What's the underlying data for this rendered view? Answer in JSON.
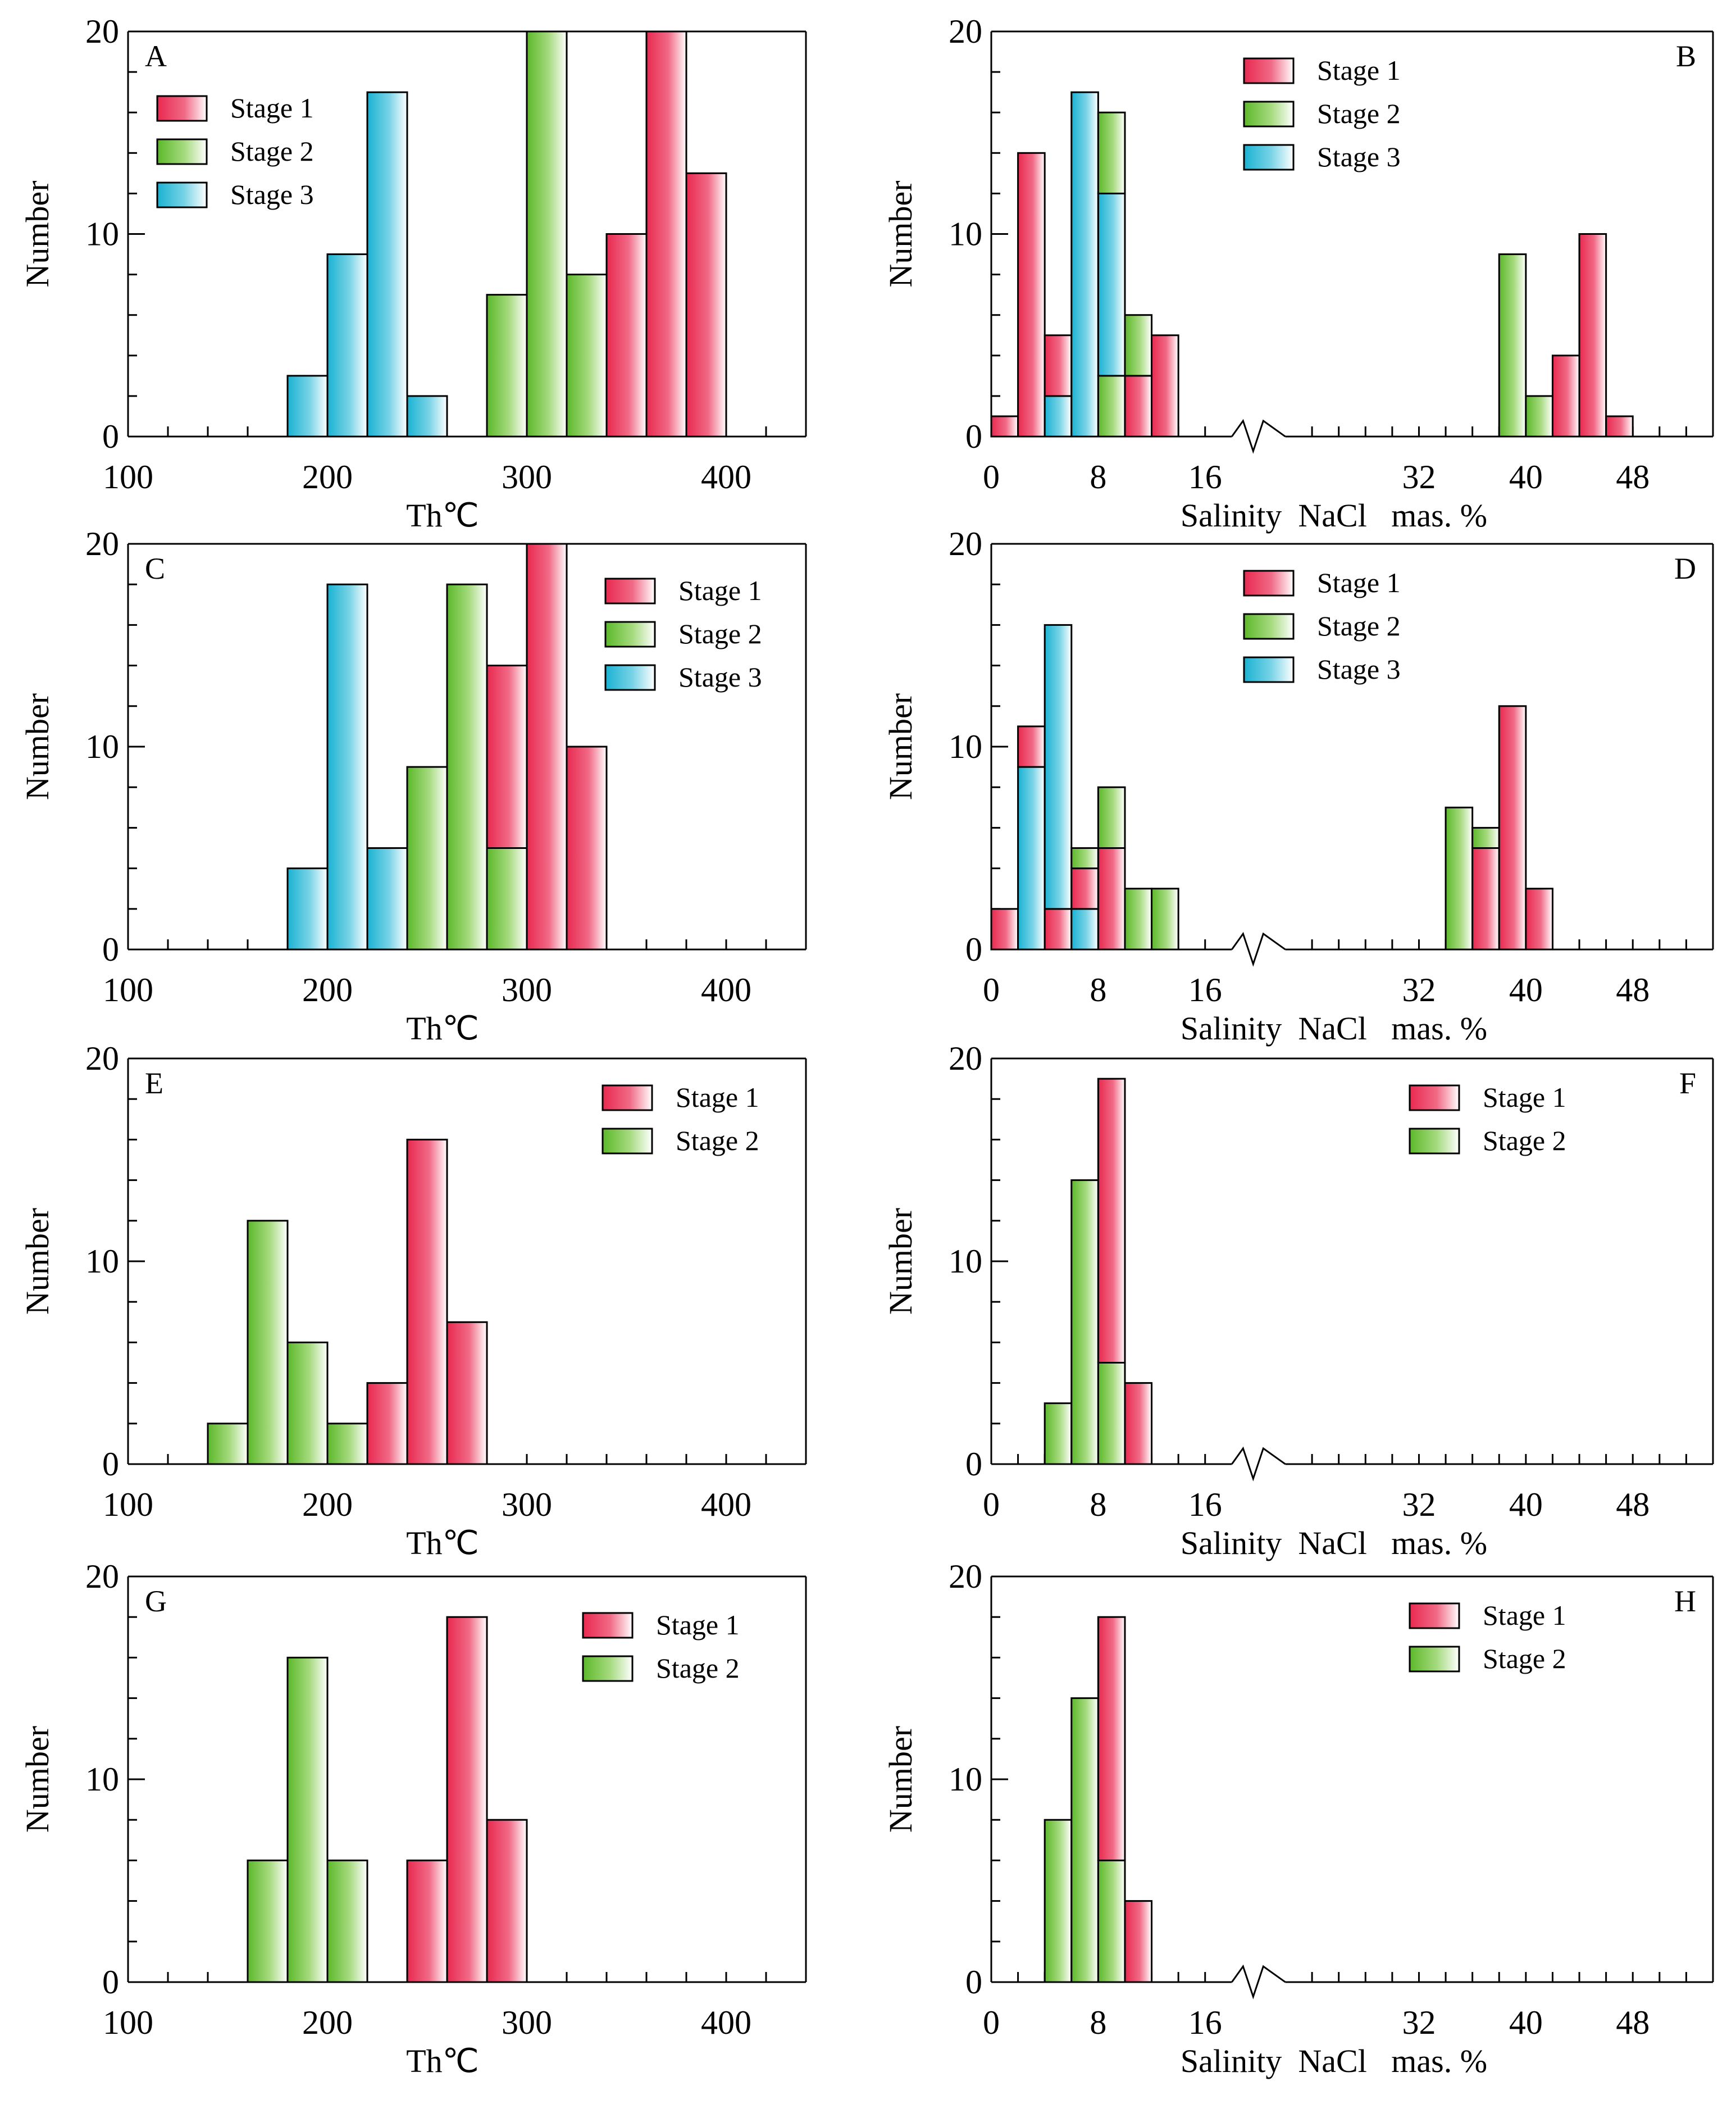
{
  "colors": {
    "stage1": "#ea2f5e",
    "stage2": "#69c232",
    "stage3": "#22b8d6",
    "axis": "#000000",
    "background": "#ffffff"
  },
  "chart_data": [
    {
      "id": "A",
      "letter": "A",
      "type": "bar",
      "kind": "th",
      "title": "",
      "xlabel": "Th℃",
      "ylabel": "Number",
      "xlim": [
        100,
        440
      ],
      "ylim": [
        0,
        20
      ],
      "bin_width": 20,
      "xticks": [
        "100",
        "200",
        "300",
        "400"
      ],
      "yticks": [
        "0",
        "10",
        "20"
      ],
      "legend": [
        "Stage 1",
        "Stage 2",
        "Stage 3"
      ],
      "legend_position": "top-left",
      "bars": [
        {
          "x": 180,
          "values": [
            {
              "stage": 3,
              "value": 3
            }
          ]
        },
        {
          "x": 200,
          "values": [
            {
              "stage": 3,
              "value": 9
            }
          ]
        },
        {
          "x": 220,
          "values": [
            {
              "stage": 3,
              "value": 17
            }
          ]
        },
        {
          "x": 240,
          "values": [
            {
              "stage": 3,
              "value": 2
            }
          ]
        },
        {
          "x": 280,
          "values": [
            {
              "stage": 2,
              "value": 7
            }
          ]
        },
        {
          "x": 300,
          "values": [
            {
              "stage": 2,
              "value": 20
            }
          ]
        },
        {
          "x": 320,
          "values": [
            {
              "stage": 2,
              "value": 8
            }
          ]
        },
        {
          "x": 340,
          "values": [
            {
              "stage": 1,
              "value": 10
            }
          ]
        },
        {
          "x": 360,
          "values": [
            {
              "stage": 1,
              "value": 20
            }
          ]
        },
        {
          "x": 380,
          "values": [
            {
              "stage": 1,
              "value": 13
            }
          ]
        }
      ]
    },
    {
      "id": "B",
      "letter": "B",
      "type": "bar",
      "kind": "sal",
      "title": "",
      "xlabel": "Salinity  NaCl   mas. %",
      "ylabel": "Number",
      "xlim": [
        0,
        54
      ],
      "ylim": [
        0,
        20
      ],
      "bin_width": 2,
      "axis_break": [
        18,
        22
      ],
      "xtick_positions": [
        0,
        8,
        16,
        32,
        40,
        48
      ],
      "xticks": [
        "0",
        "8",
        "16",
        "32",
        "40",
        "48"
      ],
      "yticks": [
        "0",
        "10",
        "20"
      ],
      "legend": [
        "Stage 1",
        "Stage 2",
        "Stage 3"
      ],
      "legend_position": "top-center",
      "bars": [
        {
          "x": 0,
          "values": [
            {
              "stage": 1,
              "value": 1
            }
          ]
        },
        {
          "x": 2,
          "values": [
            {
              "stage": 1,
              "value": 14
            }
          ]
        },
        {
          "x": 4,
          "values": [
            {
              "stage": 3,
              "value": 2
            },
            {
              "stage": 1,
              "value": 3
            }
          ]
        },
        {
          "x": 6,
          "values": [
            {
              "stage": 3,
              "value": 17
            }
          ]
        },
        {
          "x": 8,
          "values": [
            {
              "stage": 2,
              "value": 3
            },
            {
              "stage": 3,
              "value": 9
            },
            {
              "stage": 2,
              "value": 4
            }
          ]
        },
        {
          "x": 10,
          "values": [
            {
              "stage": 1,
              "value": 3
            },
            {
              "stage": 2,
              "value": 3
            }
          ]
        },
        {
          "x": 12,
          "values": [
            {
              "stage": 1,
              "value": 5
            }
          ]
        },
        {
          "x": 38,
          "values": [
            {
              "stage": 2,
              "value": 9
            }
          ]
        },
        {
          "x": 40,
          "values": [
            {
              "stage": 2,
              "value": 2
            }
          ]
        },
        {
          "x": 42,
          "values": [
            {
              "stage": 1,
              "value": 4
            }
          ]
        },
        {
          "x": 44,
          "values": [
            {
              "stage": 1,
              "value": 10
            }
          ]
        },
        {
          "x": 46,
          "values": [
            {
              "stage": 1,
              "value": 1
            }
          ]
        }
      ]
    },
    {
      "id": "C",
      "letter": "C",
      "type": "bar",
      "kind": "th",
      "title": "",
      "xlabel": "Th℃",
      "ylabel": "Number",
      "xlim": [
        100,
        440
      ],
      "ylim": [
        0,
        20
      ],
      "bin_width": 20,
      "xticks": [
        "100",
        "200",
        "300",
        "400"
      ],
      "yticks": [
        "0",
        "10",
        "20"
      ],
      "legend": [
        "Stage 1",
        "Stage 2",
        "Stage 3"
      ],
      "legend_position": "top-right",
      "bars": [
        {
          "x": 180,
          "values": [
            {
              "stage": 3,
              "value": 4
            }
          ]
        },
        {
          "x": 200,
          "values": [
            {
              "stage": 3,
              "value": 18
            }
          ]
        },
        {
          "x": 220,
          "values": [
            {
              "stage": 3,
              "value": 5
            }
          ]
        },
        {
          "x": 240,
          "values": [
            {
              "stage": 2,
              "value": 9
            }
          ]
        },
        {
          "x": 260,
          "values": [
            {
              "stage": 2,
              "value": 18
            }
          ]
        },
        {
          "x": 280,
          "values": [
            {
              "stage": 2,
              "value": 5
            },
            {
              "stage": 1,
              "value": 9
            }
          ]
        },
        {
          "x": 300,
          "values": [
            {
              "stage": 1,
              "value": 20
            }
          ]
        },
        {
          "x": 320,
          "values": [
            {
              "stage": 1,
              "value": 10
            }
          ]
        }
      ]
    },
    {
      "id": "D",
      "letter": "D",
      "type": "bar",
      "kind": "sal",
      "title": "",
      "xlabel": "Salinity  NaCl   mas. %",
      "ylabel": "Number",
      "xlim": [
        0,
        54
      ],
      "ylim": [
        0,
        20
      ],
      "bin_width": 2,
      "axis_break": [
        18,
        22
      ],
      "xtick_positions": [
        0,
        8,
        16,
        32,
        40,
        48
      ],
      "xticks": [
        "0",
        "8",
        "16",
        "32",
        "40",
        "48"
      ],
      "yticks": [
        "0",
        "10",
        "20"
      ],
      "legend": [
        "Stage 1",
        "Stage 2",
        "Stage 3"
      ],
      "legend_position": "top-center",
      "bars": [
        {
          "x": 0,
          "values": [
            {
              "stage": 1,
              "value": 2
            }
          ]
        },
        {
          "x": 2,
          "values": [
            {
              "stage": 3,
              "value": 9
            },
            {
              "stage": 1,
              "value": 2
            }
          ]
        },
        {
          "x": 4,
          "values": [
            {
              "stage": 1,
              "value": 2
            },
            {
              "stage": 3,
              "value": 14
            }
          ]
        },
        {
          "x": 6,
          "values": [
            {
              "stage": 3,
              "value": 2
            },
            {
              "stage": 1,
              "value": 2
            },
            {
              "stage": 2,
              "value": 1
            }
          ]
        },
        {
          "x": 8,
          "values": [
            {
              "stage": 1,
              "value": 5
            },
            {
              "stage": 2,
              "value": 3
            }
          ]
        },
        {
          "x": 10,
          "values": [
            {
              "stage": 2,
              "value": 3
            }
          ]
        },
        {
          "x": 12,
          "values": [
            {
              "stage": 2,
              "value": 3
            }
          ]
        },
        {
          "x": 34,
          "values": [
            {
              "stage": 2,
              "value": 7
            }
          ]
        },
        {
          "x": 36,
          "values": [
            {
              "stage": 1,
              "value": 5
            },
            {
              "stage": 2,
              "value": 1
            }
          ]
        },
        {
          "x": 38,
          "values": [
            {
              "stage": 1,
              "value": 12
            }
          ]
        },
        {
          "x": 40,
          "values": [
            {
              "stage": 1,
              "value": 3
            }
          ]
        }
      ]
    },
    {
      "id": "E",
      "letter": "E",
      "type": "bar",
      "kind": "th",
      "title": "",
      "xlabel": "Th℃",
      "ylabel": "Number",
      "xlim": [
        100,
        440
      ],
      "ylim": [
        0,
        20
      ],
      "bin_width": 20,
      "xticks": [
        "100",
        "200",
        "300",
        "400"
      ],
      "yticks": [
        "0",
        "10",
        "20"
      ],
      "legend": [
        "Stage 1",
        "Stage 2"
      ],
      "legend_position": "top-right",
      "bars": [
        {
          "x": 140,
          "values": [
            {
              "stage": 2,
              "value": 2
            }
          ]
        },
        {
          "x": 160,
          "values": [
            {
              "stage": 2,
              "value": 12
            }
          ]
        },
        {
          "x": 180,
          "values": [
            {
              "stage": 2,
              "value": 6
            }
          ]
        },
        {
          "x": 200,
          "values": [
            {
              "stage": 2,
              "value": 2
            }
          ]
        },
        {
          "x": 220,
          "values": [
            {
              "stage": 1,
              "value": 4
            }
          ]
        },
        {
          "x": 240,
          "values": [
            {
              "stage": 1,
              "value": 16
            }
          ]
        },
        {
          "x": 260,
          "values": [
            {
              "stage": 1,
              "value": 7
            }
          ]
        }
      ]
    },
    {
      "id": "F",
      "letter": "F",
      "type": "bar",
      "kind": "sal",
      "title": "",
      "xlabel": "Salinity  NaCl   mas. %",
      "ylabel": "Number",
      "xlim": [
        0,
        54
      ],
      "ylim": [
        0,
        20
      ],
      "bin_width": 2,
      "axis_break": [
        18,
        22
      ],
      "xtick_positions": [
        0,
        8,
        16,
        32,
        40,
        48
      ],
      "xticks": [
        "0",
        "8",
        "16",
        "32",
        "40",
        "48"
      ],
      "yticks": [
        "0",
        "10",
        "20"
      ],
      "legend": [
        "Stage 1",
        "Stage 2"
      ],
      "legend_position": "top-right",
      "bars": [
        {
          "x": 4,
          "values": [
            {
              "stage": 2,
              "value": 3
            }
          ]
        },
        {
          "x": 6,
          "values": [
            {
              "stage": 2,
              "value": 14
            }
          ]
        },
        {
          "x": 8,
          "values": [
            {
              "stage": 2,
              "value": 5
            },
            {
              "stage": 1,
              "value": 14
            }
          ]
        },
        {
          "x": 10,
          "values": [
            {
              "stage": 1,
              "value": 4
            }
          ]
        }
      ]
    },
    {
      "id": "G",
      "letter": "G",
      "type": "bar",
      "kind": "th",
      "title": "",
      "xlabel": "Th℃",
      "ylabel": "Number",
      "xlim": [
        100,
        440
      ],
      "ylim": [
        0,
        20
      ],
      "bin_width": 20,
      "xticks": [
        "100",
        "200",
        "300",
        "400"
      ],
      "yticks": [
        "0",
        "10",
        "20"
      ],
      "legend": [
        "Stage 1",
        "Stage 2"
      ],
      "legend_position": "top-right",
      "bars": [
        {
          "x": 160,
          "values": [
            {
              "stage": 2,
              "value": 6
            }
          ]
        },
        {
          "x": 180,
          "values": [
            {
              "stage": 2,
              "value": 16
            }
          ]
        },
        {
          "x": 200,
          "values": [
            {
              "stage": 2,
              "value": 6
            }
          ]
        },
        {
          "x": 240,
          "values": [
            {
              "stage": 1,
              "value": 6
            }
          ]
        },
        {
          "x": 260,
          "values": [
            {
              "stage": 1,
              "value": 18
            }
          ]
        },
        {
          "x": 280,
          "values": [
            {
              "stage": 1,
              "value": 8
            }
          ]
        }
      ]
    },
    {
      "id": "H",
      "letter": "H",
      "type": "bar",
      "kind": "sal",
      "title": "",
      "xlabel": "Salinity  NaCl   mas. %",
      "ylabel": "Number",
      "xlim": [
        0,
        54
      ],
      "ylim": [
        0,
        20
      ],
      "bin_width": 2,
      "axis_break": [
        18,
        22
      ],
      "xtick_positions": [
        0,
        8,
        16,
        32,
        40,
        48
      ],
      "xticks": [
        "0",
        "8",
        "16",
        "32",
        "40",
        "48"
      ],
      "yticks": [
        "0",
        "10",
        "20"
      ],
      "legend": [
        "Stage 1",
        "Stage 2"
      ],
      "legend_position": "top-right",
      "bars": [
        {
          "x": 4,
          "values": [
            {
              "stage": 2,
              "value": 8
            }
          ]
        },
        {
          "x": 6,
          "values": [
            {
              "stage": 2,
              "value": 14
            }
          ]
        },
        {
          "x": 8,
          "values": [
            {
              "stage": 2,
              "value": 6
            },
            {
              "stage": 1,
              "value": 12
            }
          ]
        },
        {
          "x": 10,
          "values": [
            {
              "stage": 1,
              "value": 4
            }
          ]
        }
      ]
    }
  ]
}
